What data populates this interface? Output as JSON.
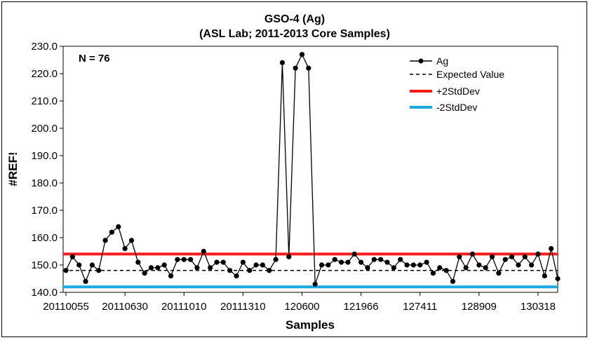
{
  "chart_data": {
    "type": "line",
    "title": "GSO-4 (Ag)",
    "subtitle": "(ASL Lab; 2011-2013 Core Samples)",
    "xlabel": "Samples",
    "ylabel": "#REF!",
    "annotation": "N = 76",
    "ylim": [
      140.0,
      230.0
    ],
    "y_ticks": [
      "140.0",
      "150.0",
      "160.0",
      "170.0",
      "180.0",
      "190.0",
      "200.0",
      "210.0",
      "220.0",
      "230.0"
    ],
    "x_tick_labels": [
      "20110055",
      "20110630",
      "20111010",
      "20111310",
      "120600",
      "121966",
      "127411",
      "128909",
      "130318"
    ],
    "x_tick_index": [
      0,
      9,
      18,
      27,
      36,
      45,
      54,
      63,
      72
    ],
    "legend_position": "top-right",
    "series": [
      {
        "name": "Ag",
        "color": "#000000",
        "values": [
          148,
          153,
          150,
          144,
          150,
          148,
          159,
          162,
          164,
          156,
          159,
          151,
          147,
          149,
          149,
          150,
          146,
          152,
          152,
          152,
          149,
          155,
          149,
          151,
          151,
          148,
          146,
          151,
          148,
          150,
          150,
          148,
          152,
          224,
          153,
          222,
          227,
          222,
          143,
          150,
          150,
          152,
          151,
          151,
          154,
          151,
          149,
          152,
          152,
          151,
          149,
          152,
          150,
          150,
          150,
          151,
          147,
          149,
          148,
          144,
          153,
          149,
          154,
          150,
          149,
          153,
          147,
          152,
          153,
          150,
          153,
          150,
          154,
          146,
          156,
          145
        ]
      }
    ],
    "reference_lines": [
      {
        "name": "Expected Value",
        "value": 148,
        "color": "#000000",
        "style": "dashed"
      },
      {
        "name": "+2StdDev",
        "value": 154,
        "color": "#ff1a1a",
        "style": "solid"
      },
      {
        "name": "-2StdDev",
        "value": 142,
        "color": "#1aa8e0",
        "style": "solid"
      }
    ]
  }
}
